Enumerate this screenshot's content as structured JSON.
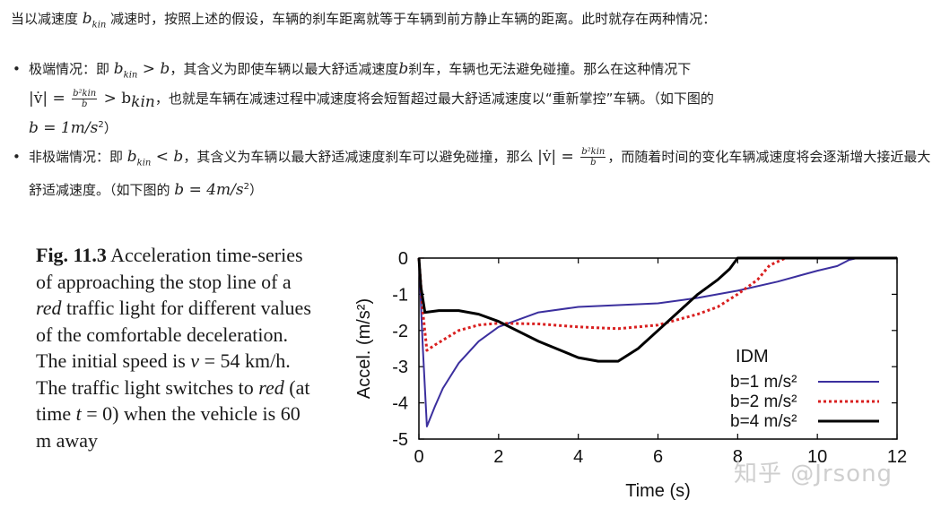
{
  "intro": {
    "p1": "当以减速度 ",
    "var": "b",
    "sub": "kin",
    "p2": " 减速时，按照上述的假设，车辆的刹车距离就等于车辆到前方静止车辆的距离。此时就存在两种情况："
  },
  "bullets": [
    {
      "head": "极端情况：即 ",
      "cond": "b",
      "cond_sub": "kin",
      "cond_rel": " > b",
      "t1": "，其含义为即使车辆以最大舒适减速度",
      "t1b": "b",
      "t1c": "刹车，车辆也无法避免碰撞。那么在这种情况下",
      "eq_lhs": "|v̇| = ",
      "frac_num": "b²kin",
      "frac_den": "b",
      "eq_rhs": " > b",
      "eq_rhs_sub": "kin",
      "t2": "，也就是车辆在减速过程中减速度将会短暂超过最大舒适减速度以“重新掌控”车辆。（如下图的",
      "eq_b": "b = 1m/s",
      "eq_b_sup": "2",
      "t3": "）"
    },
    {
      "head": "非极端情况：即 ",
      "cond": "b",
      "cond_sub": "kin",
      "cond_rel": " < b",
      "t1": "，其含义为车辆以最大舒适减速度刹车可以避免碰撞，那么 ",
      "eq_lhs": "|v̇| = ",
      "frac_num": "b²kin",
      "frac_den": "b",
      "t2": "，而随着时间的变化车辆减速度将会逐渐增大接近最大舒适减速度。（如下图的 ",
      "eq_b": "b = 4m/s",
      "eq_b_sup": "2",
      "t3": "）"
    }
  ],
  "caption": {
    "label": "Fig. 11.3",
    "text1": " Acceleration time-series of approaching the stop line of a ",
    "red": "red",
    "text2": " traffic light for different values of the comfortable deceleration. The initial speed is ",
    "v": "v",
    "text3": " = 54 km/h. The traffic light switches to ",
    "red2": "red",
    "text4": " (at time ",
    "t": "t",
    "text5": " = 0) when the vehicle is 60 m away"
  },
  "watermark": "知乎 @Jrsong",
  "chart_data": {
    "type": "line",
    "xlabel": "Time (s)",
    "ylabel": "Accel. (m/s²)",
    "xlim": [
      0,
      12
    ],
    "ylim": [
      -5,
      0
    ],
    "xticks": [
      "0",
      "2",
      "4",
      "6",
      "8",
      "10",
      "12"
    ],
    "yticks": [
      "0",
      "-1",
      "-2",
      "-3",
      "-4",
      "-5"
    ],
    "legend_title": "IDM",
    "legend_position": "bottom-right",
    "series": [
      {
        "name": "b=1 m/s²",
        "color": "#3b2f9e",
        "style": "solid",
        "x": [
          0,
          0.1,
          0.2,
          0.4,
          0.6,
          1.0,
          1.5,
          2.0,
          3.0,
          4.0,
          5.0,
          6.0,
          7.0,
          7.5,
          8.0,
          9.0,
          10.0,
          10.5,
          10.8,
          11.0,
          12.0
        ],
        "y": [
          0,
          -2.5,
          -4.65,
          -4.1,
          -3.6,
          -2.9,
          -2.3,
          -1.9,
          -1.5,
          -1.35,
          -1.3,
          -1.25,
          -1.1,
          -1.0,
          -0.9,
          -0.65,
          -0.35,
          -0.22,
          -0.05,
          0,
          0
        ]
      },
      {
        "name": "b=2 m/s²",
        "color": "#d92020",
        "style": "dotted",
        "x": [
          0,
          0.1,
          0.2,
          0.4,
          0.7,
          1.0,
          1.5,
          2.0,
          3.0,
          4.0,
          5.0,
          6.0,
          7.0,
          7.5,
          8.0,
          8.5,
          8.8,
          9.2,
          12.0
        ],
        "y": [
          0,
          -1.5,
          -2.55,
          -2.4,
          -2.2,
          -2.0,
          -1.85,
          -1.8,
          -1.82,
          -1.9,
          -1.95,
          -1.85,
          -1.55,
          -1.35,
          -1.0,
          -0.6,
          -0.2,
          0,
          0
        ]
      },
      {
        "name": "b=4 m/s²",
        "color": "#000000",
        "style": "solid",
        "x": [
          0,
          0.05,
          0.15,
          0.5,
          1.0,
          1.5,
          2.0,
          3.0,
          4.0,
          4.5,
          5.0,
          5.5,
          6.0,
          6.5,
          7.0,
          7.5,
          7.8,
          8.0,
          12.0
        ],
        "y": [
          0,
          -0.8,
          -1.5,
          -1.45,
          -1.45,
          -1.55,
          -1.75,
          -2.3,
          -2.75,
          -2.85,
          -2.85,
          -2.5,
          -2.0,
          -1.5,
          -1.0,
          -0.6,
          -0.3,
          0,
          0
        ]
      }
    ]
  }
}
